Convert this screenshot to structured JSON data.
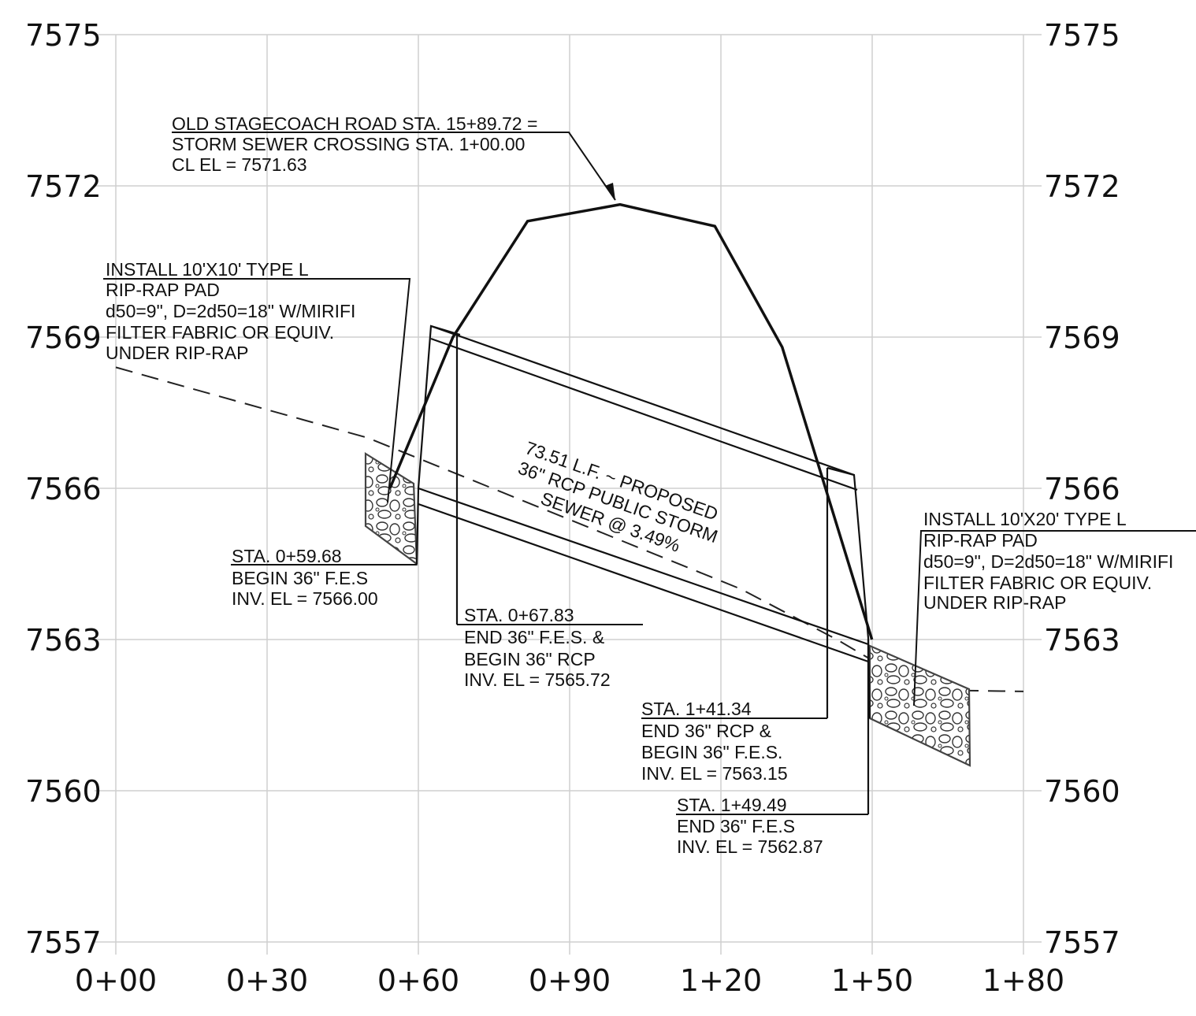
{
  "axes": {
    "elevation_ticks": [
      "7575",
      "7572",
      "7569",
      "7566",
      "7563",
      "7560",
      "7557"
    ],
    "station_ticks": [
      "0+00",
      "0+30",
      "0+60",
      "0+90",
      "1+20",
      "1+50",
      "1+80"
    ]
  },
  "notes": {
    "crossing": {
      "line1": "OLD STAGECOACH ROAD STA. 15+89.72 =",
      "line2": "STORM SEWER CROSSING STA. 1+00.00",
      "line3": "CL EL = 7571.63"
    },
    "riprap_upstream": {
      "line1": "INSTALL 10'X10' TYPE L",
      "line2": "RIP-RAP PAD",
      "line3": "d50=9\", D=2d50=18\" W/MIRIFI",
      "line4": "FILTER FABRIC OR EQUIV.",
      "line5": "UNDER RIP-RAP"
    },
    "riprap_downstream": {
      "line1": "INSTALL 10'X20' TYPE L",
      "line2": "RIP-RAP PAD",
      "line3": "d50=9\", D=2d50=18\" W/MIRIFI",
      "line4": "FILTER FABRIC OR EQUIV.",
      "line5": "UNDER RIP-RAP"
    },
    "begin_fes": {
      "line1": "STA. 0+59.68",
      "line2": "BEGIN 36\" F.E.S",
      "line3": "INV. EL = 7566.00"
    },
    "begin_rcp": {
      "line1": "STA. 0+67.83",
      "line2": "END 36\" F.E.S. &",
      "line3": "BEGIN 36\" RCP",
      "line4": "INV. EL = 7565.72"
    },
    "end_rcp": {
      "line1": "STA. 1+41.34",
      "line2": "END 36\" RCP &",
      "line3": "BEGIN 36\" F.E.S.",
      "line4": "INV. EL = 7563.15"
    },
    "end_fes": {
      "line1": "STA. 1+49.49",
      "line2": "END 36\" F.E.S",
      "line3": "INV. EL = 7562.87"
    },
    "pipe_label": {
      "line1": "73.51 L.F. ~ PROPOSED",
      "line2": "36\" RCP PUBLIC STORM",
      "line3": "SEWER @ 3.49%"
    }
  },
  "profile": {
    "road_surface": [
      [
        0.5436,
        7566
      ],
      [
        0.6686,
        7569
      ],
      [
        0.8166,
        7571.3
      ],
      [
        1.0,
        7571.63
      ],
      [
        1.188,
        7571.2
      ],
      [
        1.3215,
        7568.8
      ],
      [
        1.4996,
        7563
      ]
    ],
    "existing_ground": [
      [
        0,
        7568.4
      ],
      [
        0.5,
        7567.0
      ],
      [
        1.24,
        7564.0
      ],
      [
        1.43,
        7563.0
      ],
      [
        1.6,
        7562.0
      ],
      [
        1.8,
        7561.97
      ]
    ],
    "pipe_invert": [
      [
        0.5968,
        7566.0
      ],
      [
        0.6783,
        7565.72
      ],
      [
        1.4134,
        7563.15
      ],
      [
        1.4949,
        7562.87
      ]
    ],
    "pipe_diameter_ft": 3
  }
}
